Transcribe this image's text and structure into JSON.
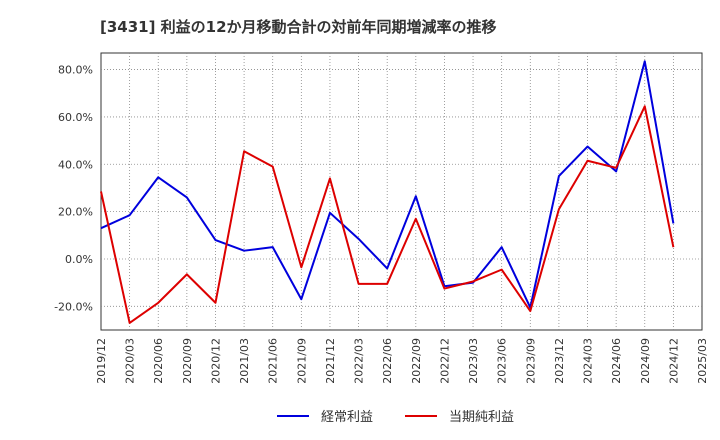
{
  "chart_data": {
    "type": "line",
    "title": "[3431]  利益の12か月移動合計の対前年同期増減率の推移",
    "xlabel": "",
    "ylabel": "",
    "ylim": [
      -30,
      87
    ],
    "yticks": [
      -20,
      0,
      20,
      40,
      60,
      80
    ],
    "ytick_labels": [
      "-20.0%",
      "0.0%",
      "20.0%",
      "40.0%",
      "60.0%",
      "80.0%"
    ],
    "categories": [
      "2019/12",
      "2020/03",
      "2020/06",
      "2020/09",
      "2020/12",
      "2021/03",
      "2021/06",
      "2021/09",
      "2021/12",
      "2022/03",
      "2022/06",
      "2022/09",
      "2022/12",
      "2023/03",
      "2023/06",
      "2023/09",
      "2023/12",
      "2024/03",
      "2024/06",
      "2024/09",
      "2024/12",
      "2025/03"
    ],
    "grid": true,
    "legend_position": "bottom",
    "series": [
      {
        "name": "経常利益",
        "color": "#0000dd",
        "values": [
          13.0,
          18.5,
          34.5,
          26.0,
          8.0,
          3.5,
          5.0,
          -17.0,
          19.5,
          8.5,
          -4.0,
          26.5,
          -11.5,
          -10.0,
          5.0,
          -20.5,
          35.0,
          47.5,
          37.0,
          83.5,
          15.0,
          null
        ]
      },
      {
        "name": "当期純利益",
        "color": "#dd0000",
        "values": [
          28.5,
          -27.0,
          -18.5,
          -6.5,
          -18.5,
          45.5,
          39.0,
          -3.5,
          34.0,
          -10.5,
          -10.5,
          17.0,
          -12.5,
          -9.5,
          -4.5,
          -22.0,
          21.0,
          41.5,
          38.5,
          64.5,
          5.0,
          null
        ]
      }
    ]
  }
}
